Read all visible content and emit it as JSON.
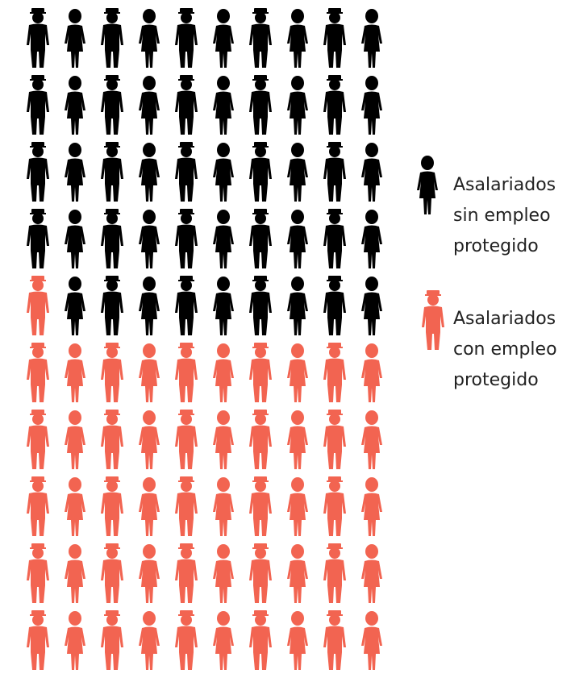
{
  "chart_data": {
    "type": "pictogram",
    "series": [
      {
        "name": "Asalariados sin empleo protegido",
        "color": "#000000",
        "value": 49
      },
      {
        "name": "Asalariados con empleo protegido",
        "color": "#f26451",
        "value": 51
      }
    ]
  }
}
